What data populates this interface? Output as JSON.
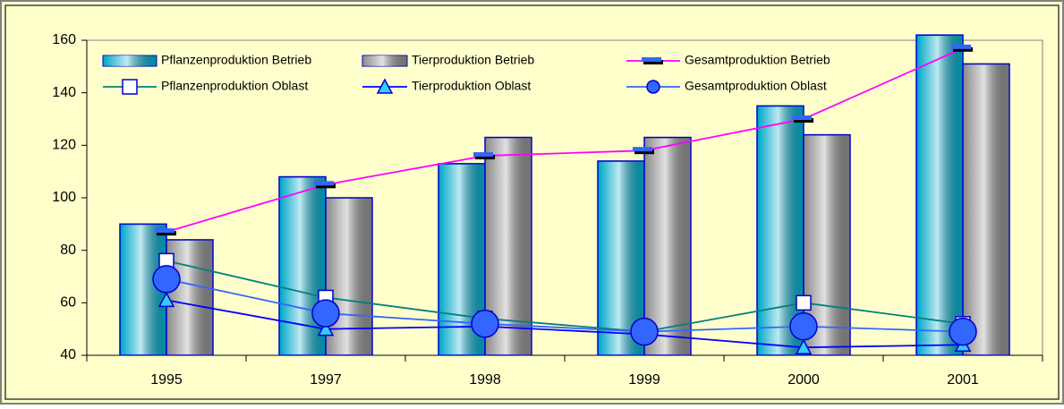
{
  "chart_data": {
    "type": "bar",
    "categories": [
      "1995",
      "1997",
      "1998",
      "1999",
      "2000",
      "2001"
    ],
    "ylim": [
      40,
      160
    ],
    "yticks": [
      40,
      60,
      80,
      100,
      120,
      140,
      160
    ],
    "series": [
      {
        "name": "Pflanzenproduktion Betrieb",
        "kind": "bar",
        "color": "#00a8c8",
        "values": [
          90,
          108,
          113,
          114,
          135,
          162
        ]
      },
      {
        "name": "Tierproduktion Betrieb",
        "kind": "bar",
        "color": "#8c8c8c",
        "values": [
          84,
          100,
          123,
          123,
          124,
          151
        ]
      },
      {
        "name": "Gesamtproduktion Betrieb",
        "kind": "line",
        "marker": "dash",
        "color": "#ff00ff",
        "values": [
          87,
          105,
          116,
          118,
          130,
          157
        ]
      },
      {
        "name": "Pflanzenproduktion Oblast",
        "kind": "line",
        "marker": "square",
        "color": "#008080",
        "values": [
          76,
          62,
          54,
          49,
          60,
          52
        ]
      },
      {
        "name": "Tierproduktion Oblast",
        "kind": "line",
        "marker": "triangle",
        "color": "#0000ff",
        "values": [
          61,
          50,
          51,
          48,
          43,
          44
        ]
      },
      {
        "name": "Gesamtproduktion Oblast",
        "kind": "line",
        "marker": "circle",
        "color": "#3366ff",
        "values": [
          69,
          56,
          52,
          49,
          51,
          49
        ]
      }
    ]
  }
}
